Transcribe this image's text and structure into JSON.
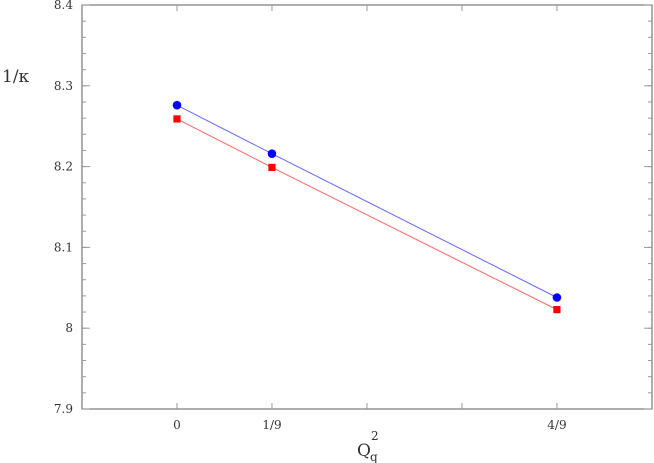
{
  "chart_data": {
    "type": "line",
    "title": "",
    "xlabel": "Q",
    "xlabel_subscript": "q",
    "xlabel_superscript": "2",
    "ylabel": "1/κ",
    "xlim": [
      -0.1111,
      0.5556
    ],
    "ylim": [
      7.9,
      8.4
    ],
    "x_ticks": [
      {
        "value": 0,
        "label": "0"
      },
      {
        "value": 0.1111,
        "label": "1/9"
      },
      {
        "value": 0.2222,
        "label": ""
      },
      {
        "value": 0.3333,
        "label": ""
      },
      {
        "value": 0.4444,
        "label": "4/9"
      }
    ],
    "y_ticks": [
      {
        "value": 7.9,
        "label": "7.9"
      },
      {
        "value": 8.0,
        "label": "8"
      },
      {
        "value": 8.1,
        "label": "8.1"
      },
      {
        "value": 8.2,
        "label": "8.2"
      },
      {
        "value": 8.3,
        "label": "8.3"
      },
      {
        "value": 8.4,
        "label": "8.4"
      }
    ],
    "y_minor_step": 0.02,
    "grid": false,
    "x": [
      0,
      0.1111,
      0.4444
    ],
    "series": [
      {
        "marker": "circle",
        "color": "#0000ff",
        "line_color": "#6666ff",
        "values": [
          8.276,
          8.216,
          8.038
        ]
      },
      {
        "marker": "square",
        "color": "#ff0000",
        "line_color": "#ff6666",
        "values": [
          8.259,
          8.199,
          8.023
        ]
      }
    ]
  }
}
